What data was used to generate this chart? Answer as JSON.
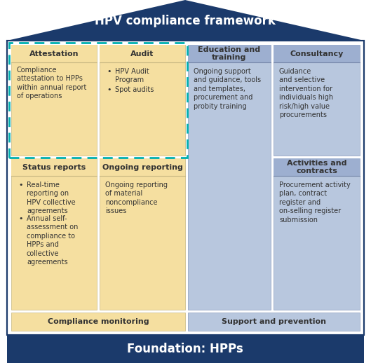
{
  "title_top": "HPV compliance framework",
  "title_bottom": "Foundation: HPPs",
  "label_compliance_monitoring": "Compliance monitoring",
  "label_support_prevention": "Support and prevention",
  "col1_header1": "Attestation",
  "col1_body1": "Compliance\nattestation to HPPs\nwithin annual report\nof operations",
  "col2_header1": "Audit",
  "col2_body1_bullets": [
    "HPV Audit\nProgram",
    "Spot audits"
  ],
  "col1_header2": "Status reports",
  "col1_body2_bullets": [
    "Real-time\nreporting on\nHPV collective\nagreements",
    "Annual self-\nassessment on\ncompliance to\nHPPs and\ncollective\nagreements"
  ],
  "col2_header2": "Ongoing reporting",
  "col2_body2": "Ongoing reporting\nof material\nnoncompliance\nissues",
  "col3_header1": "Education and\ntraining",
  "col3_body1": "Ongoing support\nand guidance, tools\nand templates,\nprocurement and\nprobity training",
  "col4_header1": "Consultancy",
  "col4_body1": "Guidance\nand selective\nintervention for\nindividuals high\nrisk/high value\nprocurements",
  "col4_header2": "Activities and\ncontracts",
  "col4_body2": "Procurement activity\nplan, contract\nregister and\non-selling register\nsubmission",
  "color_dark_blue": "#1b3a6b",
  "color_light_blue": "#9dafd0",
  "color_lighter_blue": "#b8c7de",
  "color_peach": "#f5dfa0",
  "color_teal": "#00b0b0",
  "color_white": "#ffffff",
  "color_dark_text": "#333333",
  "bg_color": "#ffffff"
}
